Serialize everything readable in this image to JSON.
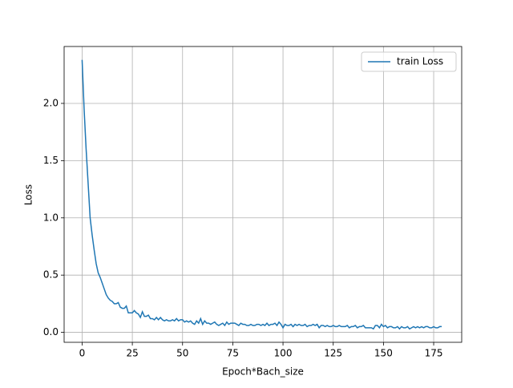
{
  "chart_data": {
    "type": "line",
    "xlabel": "Epoch*Bach_size",
    "ylabel": "Loss",
    "x": [
      0,
      1,
      2,
      3,
      4,
      5,
      6,
      7,
      8,
      9,
      10,
      11,
      12,
      13,
      14,
      15,
      16,
      17,
      18,
      19,
      20,
      21,
      22,
      23,
      24,
      25,
      26,
      27,
      28,
      29,
      30,
      31,
      32,
      33,
      34,
      35,
      36,
      37,
      38,
      39,
      40,
      41,
      42,
      43,
      44,
      45,
      46,
      47,
      48,
      49,
      50,
      51,
      52,
      53,
      54,
      55,
      56,
      57,
      58,
      59,
      60,
      61,
      62,
      63,
      64,
      65,
      66,
      67,
      68,
      69,
      70,
      71,
      72,
      73,
      74,
      75,
      76,
      77,
      78,
      79,
      80,
      81,
      82,
      83,
      84,
      85,
      86,
      87,
      88,
      89,
      90,
      91,
      92,
      93,
      94,
      95,
      96,
      97,
      98,
      99,
      100,
      101,
      102,
      103,
      104,
      105,
      106,
      107,
      108,
      109,
      110,
      111,
      112,
      113,
      114,
      115,
      116,
      117,
      118,
      119,
      120,
      121,
      122,
      123,
      124,
      125,
      126,
      127,
      128,
      129,
      130,
      131,
      132,
      133,
      134,
      135,
      136,
      137,
      138,
      139,
      140,
      141,
      142,
      143,
      144,
      145,
      146,
      147,
      148,
      149,
      150,
      151,
      152,
      153,
      154,
      155,
      156,
      157,
      158,
      159,
      160,
      161,
      162,
      163,
      164,
      165,
      166,
      167,
      168,
      169,
      170,
      171,
      172,
      173,
      174,
      175,
      176,
      177,
      178,
      179
    ],
    "series": [
      {
        "name": "train Loss",
        "color": "#1f77b4",
        "values": [
          2.38,
          1.95,
          1.6,
          1.3,
          1.0,
          0.85,
          0.72,
          0.6,
          0.52,
          0.48,
          0.43,
          0.38,
          0.33,
          0.3,
          0.28,
          0.27,
          0.25,
          0.25,
          0.26,
          0.22,
          0.21,
          0.21,
          0.23,
          0.17,
          0.17,
          0.17,
          0.19,
          0.17,
          0.16,
          0.13,
          0.18,
          0.14,
          0.14,
          0.15,
          0.12,
          0.12,
          0.11,
          0.13,
          0.11,
          0.13,
          0.11,
          0.1,
          0.11,
          0.1,
          0.1,
          0.11,
          0.1,
          0.12,
          0.1,
          0.11,
          0.11,
          0.09,
          0.1,
          0.09,
          0.1,
          0.08,
          0.07,
          0.1,
          0.08,
          0.12,
          0.07,
          0.1,
          0.08,
          0.08,
          0.07,
          0.08,
          0.09,
          0.07,
          0.06,
          0.07,
          0.08,
          0.06,
          0.09,
          0.07,
          0.08,
          0.08,
          0.08,
          0.07,
          0.06,
          0.08,
          0.07,
          0.07,
          0.06,
          0.06,
          0.07,
          0.06,
          0.06,
          0.07,
          0.07,
          0.06,
          0.07,
          0.06,
          0.08,
          0.06,
          0.07,
          0.07,
          0.08,
          0.06,
          0.09,
          0.07,
          0.04,
          0.07,
          0.06,
          0.06,
          0.07,
          0.05,
          0.07,
          0.06,
          0.07,
          0.06,
          0.06,
          0.07,
          0.05,
          0.06,
          0.06,
          0.07,
          0.06,
          0.07,
          0.04,
          0.06,
          0.06,
          0.05,
          0.06,
          0.05,
          0.05,
          0.06,
          0.05,
          0.05,
          0.06,
          0.05,
          0.05,
          0.05,
          0.06,
          0.04,
          0.05,
          0.05,
          0.06,
          0.04,
          0.05,
          0.05,
          0.06,
          0.04,
          0.04,
          0.04,
          0.04,
          0.03,
          0.06,
          0.06,
          0.04,
          0.07,
          0.05,
          0.06,
          0.04,
          0.05,
          0.05,
          0.04,
          0.04,
          0.05,
          0.03,
          0.05,
          0.04,
          0.04,
          0.05,
          0.03,
          0.04,
          0.05,
          0.04,
          0.05,
          0.04,
          0.05,
          0.04,
          0.05,
          0.05,
          0.04,
          0.04,
          0.05,
          0.04,
          0.04,
          0.05,
          0.05
        ]
      }
    ],
    "xlim": [
      -8.95,
      188.95
    ],
    "ylim": [
      -0.087,
      2.497
    ],
    "xticks": [
      0,
      25,
      50,
      75,
      100,
      125,
      150,
      175
    ],
    "yticks": [
      {
        "value": 0,
        "label": "0.0"
      },
      {
        "value": 0.5,
        "label": "0.5"
      },
      {
        "value": 1,
        "label": "1.0"
      },
      {
        "value": 1.5,
        "label": "1.5"
      },
      {
        "value": 2,
        "label": "2.0"
      }
    ],
    "grid": true,
    "legend": "upper right"
  }
}
